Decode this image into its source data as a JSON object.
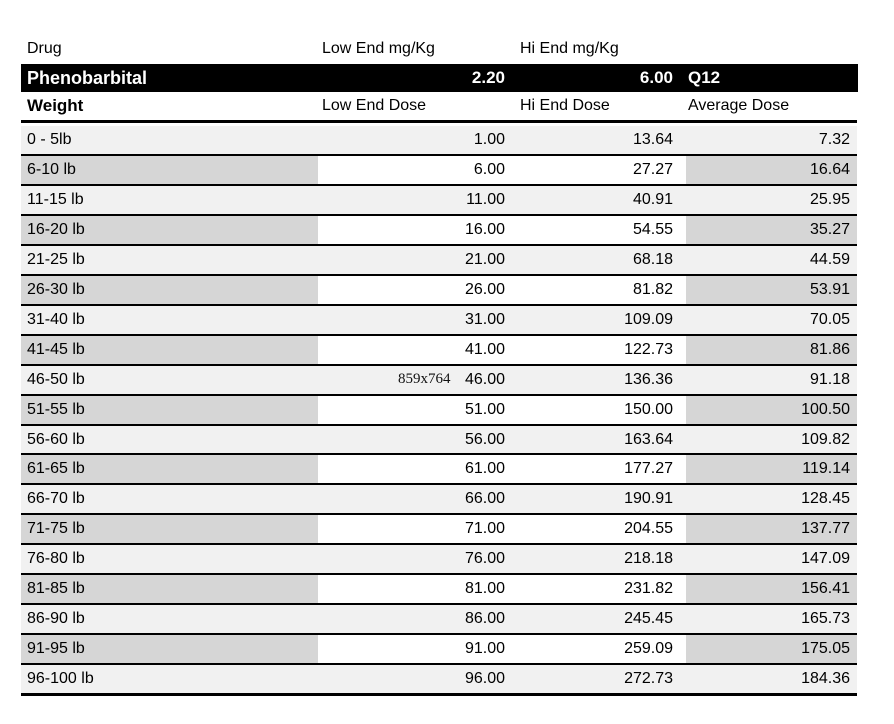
{
  "watermark": "859x764",
  "drug_header": {
    "drug": "Drug",
    "low_end": "Low End mg/Kg",
    "hi_end": "Hi End mg/Kg"
  },
  "drug_row": {
    "name": "Phenobarbital",
    "low_end_mg_kg": "2.20",
    "hi_end_mg_kg": "6.00",
    "frequency": "Q12"
  },
  "dose_header": {
    "weight": "Weight",
    "low": "Low End Dose",
    "hi": "Hi End Dose",
    "avg": "Average Dose"
  },
  "rows": [
    {
      "weight": "0 - 5lb",
      "low": "1.00",
      "hi": "13.64",
      "avg": "7.32",
      "shaded": false
    },
    {
      "weight": "6-10 lb",
      "low": "6.00",
      "hi": "27.27",
      "avg": "16.64",
      "shaded": true
    },
    {
      "weight": "11-15 lb",
      "low": "11.00",
      "hi": "40.91",
      "avg": "25.95",
      "shaded": false
    },
    {
      "weight": "16-20 lb",
      "low": "16.00",
      "hi": "54.55",
      "avg": "35.27",
      "shaded": true
    },
    {
      "weight": "21-25 lb",
      "low": "21.00",
      "hi": "68.18",
      "avg": "44.59",
      "shaded": false
    },
    {
      "weight": "26-30 lb",
      "low": "26.00",
      "hi": "81.82",
      "avg": "53.91",
      "shaded": true
    },
    {
      "weight": "31-40 lb",
      "low": "31.00",
      "hi": "109.09",
      "avg": "70.05",
      "shaded": false
    },
    {
      "weight": "41-45 lb",
      "low": "41.00",
      "hi": "122.73",
      "avg": "81.86",
      "shaded": true
    },
    {
      "weight": "46-50 lb",
      "low": "46.00",
      "hi": "136.36",
      "avg": "91.18",
      "shaded": false
    },
    {
      "weight": "51-55 lb",
      "low": "51.00",
      "hi": "150.00",
      "avg": "100.50",
      "shaded": true
    },
    {
      "weight": "56-60 lb",
      "low": "56.00",
      "hi": "163.64",
      "avg": "109.82",
      "shaded": false
    },
    {
      "weight": "61-65 lb",
      "low": "61.00",
      "hi": "177.27",
      "avg": "119.14",
      "shaded": true
    },
    {
      "weight": "66-70 lb",
      "low": "66.00",
      "hi": "190.91",
      "avg": "128.45",
      "shaded": false
    },
    {
      "weight": "71-75 lb",
      "low": "71.00",
      "hi": "204.55",
      "avg": "137.77",
      "shaded": true
    },
    {
      "weight": "76-80 lb",
      "low": "76.00",
      "hi": "218.18",
      "avg": "147.09",
      "shaded": false
    },
    {
      "weight": "81-85 lb",
      "low": "81.00",
      "hi": "231.82",
      "avg": "156.41",
      "shaded": true
    },
    {
      "weight": "86-90 lb",
      "low": "86.00",
      "hi": "245.45",
      "avg": "165.73",
      "shaded": false
    },
    {
      "weight": "91-95 lb",
      "low": "91.00",
      "hi": "259.09",
      "avg": "175.05",
      "shaded": true
    },
    {
      "weight": "96-100 lb",
      "low": "96.00",
      "hi": "272.73",
      "avg": "184.36",
      "shaded": false
    }
  ],
  "colors": {
    "band_bg": "#000000",
    "band_text": "#ffffff",
    "row_light": "#f1f1f1",
    "row_shaded": "#d6d6d6",
    "row_white": "#ffffff",
    "border": "#000000"
  }
}
